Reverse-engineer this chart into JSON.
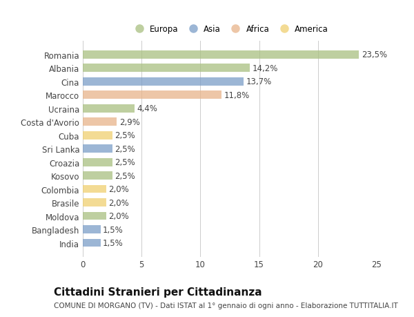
{
  "categories": [
    "Romania",
    "Albania",
    "Cina",
    "Marocco",
    "Ucraina",
    "Costa d'Avorio",
    "Cuba",
    "Sri Lanka",
    "Croazia",
    "Kosovo",
    "Colombia",
    "Brasile",
    "Moldova",
    "Bangladesh",
    "India"
  ],
  "values": [
    23.5,
    14.2,
    13.7,
    11.8,
    4.4,
    2.9,
    2.5,
    2.5,
    2.5,
    2.5,
    2.0,
    2.0,
    2.0,
    1.5,
    1.5
  ],
  "labels": [
    "23,5%",
    "14,2%",
    "13,7%",
    "11,8%",
    "4,4%",
    "2,9%",
    "2,5%",
    "2,5%",
    "2,5%",
    "2,5%",
    "2,0%",
    "2,0%",
    "2,0%",
    "1,5%",
    "1,5%"
  ],
  "continents": [
    "Europa",
    "Europa",
    "Asia",
    "Africa",
    "Europa",
    "Africa",
    "America",
    "Asia",
    "Europa",
    "Europa",
    "America",
    "America",
    "Europa",
    "Asia",
    "Asia"
  ],
  "continent_colors": {
    "Europa": "#a8c080",
    "Asia": "#7b9ec8",
    "Africa": "#e8b48a",
    "America": "#f0d070"
  },
  "legend_order": [
    "Europa",
    "Asia",
    "Africa",
    "America"
  ],
  "title": "Cittadini Stranieri per Cittadinanza",
  "subtitle": "COMUNE DI MORGANO (TV) - Dati ISTAT al 1° gennaio di ogni anno - Elaborazione TUTTITALIA.IT",
  "xlim": [
    0,
    25
  ],
  "xticks": [
    0,
    5,
    10,
    15,
    20,
    25
  ],
  "background_color": "#ffffff",
  "plot_bg_color": "#ffffff",
  "grid_color": "#cccccc",
  "text_color": "#444444",
  "label_fontsize": 8.5,
  "ytick_fontsize": 8.5,
  "xtick_fontsize": 8.5,
  "title_fontsize": 11,
  "subtitle_fontsize": 7.5,
  "bar_height": 0.6,
  "bar_alpha": 0.75
}
